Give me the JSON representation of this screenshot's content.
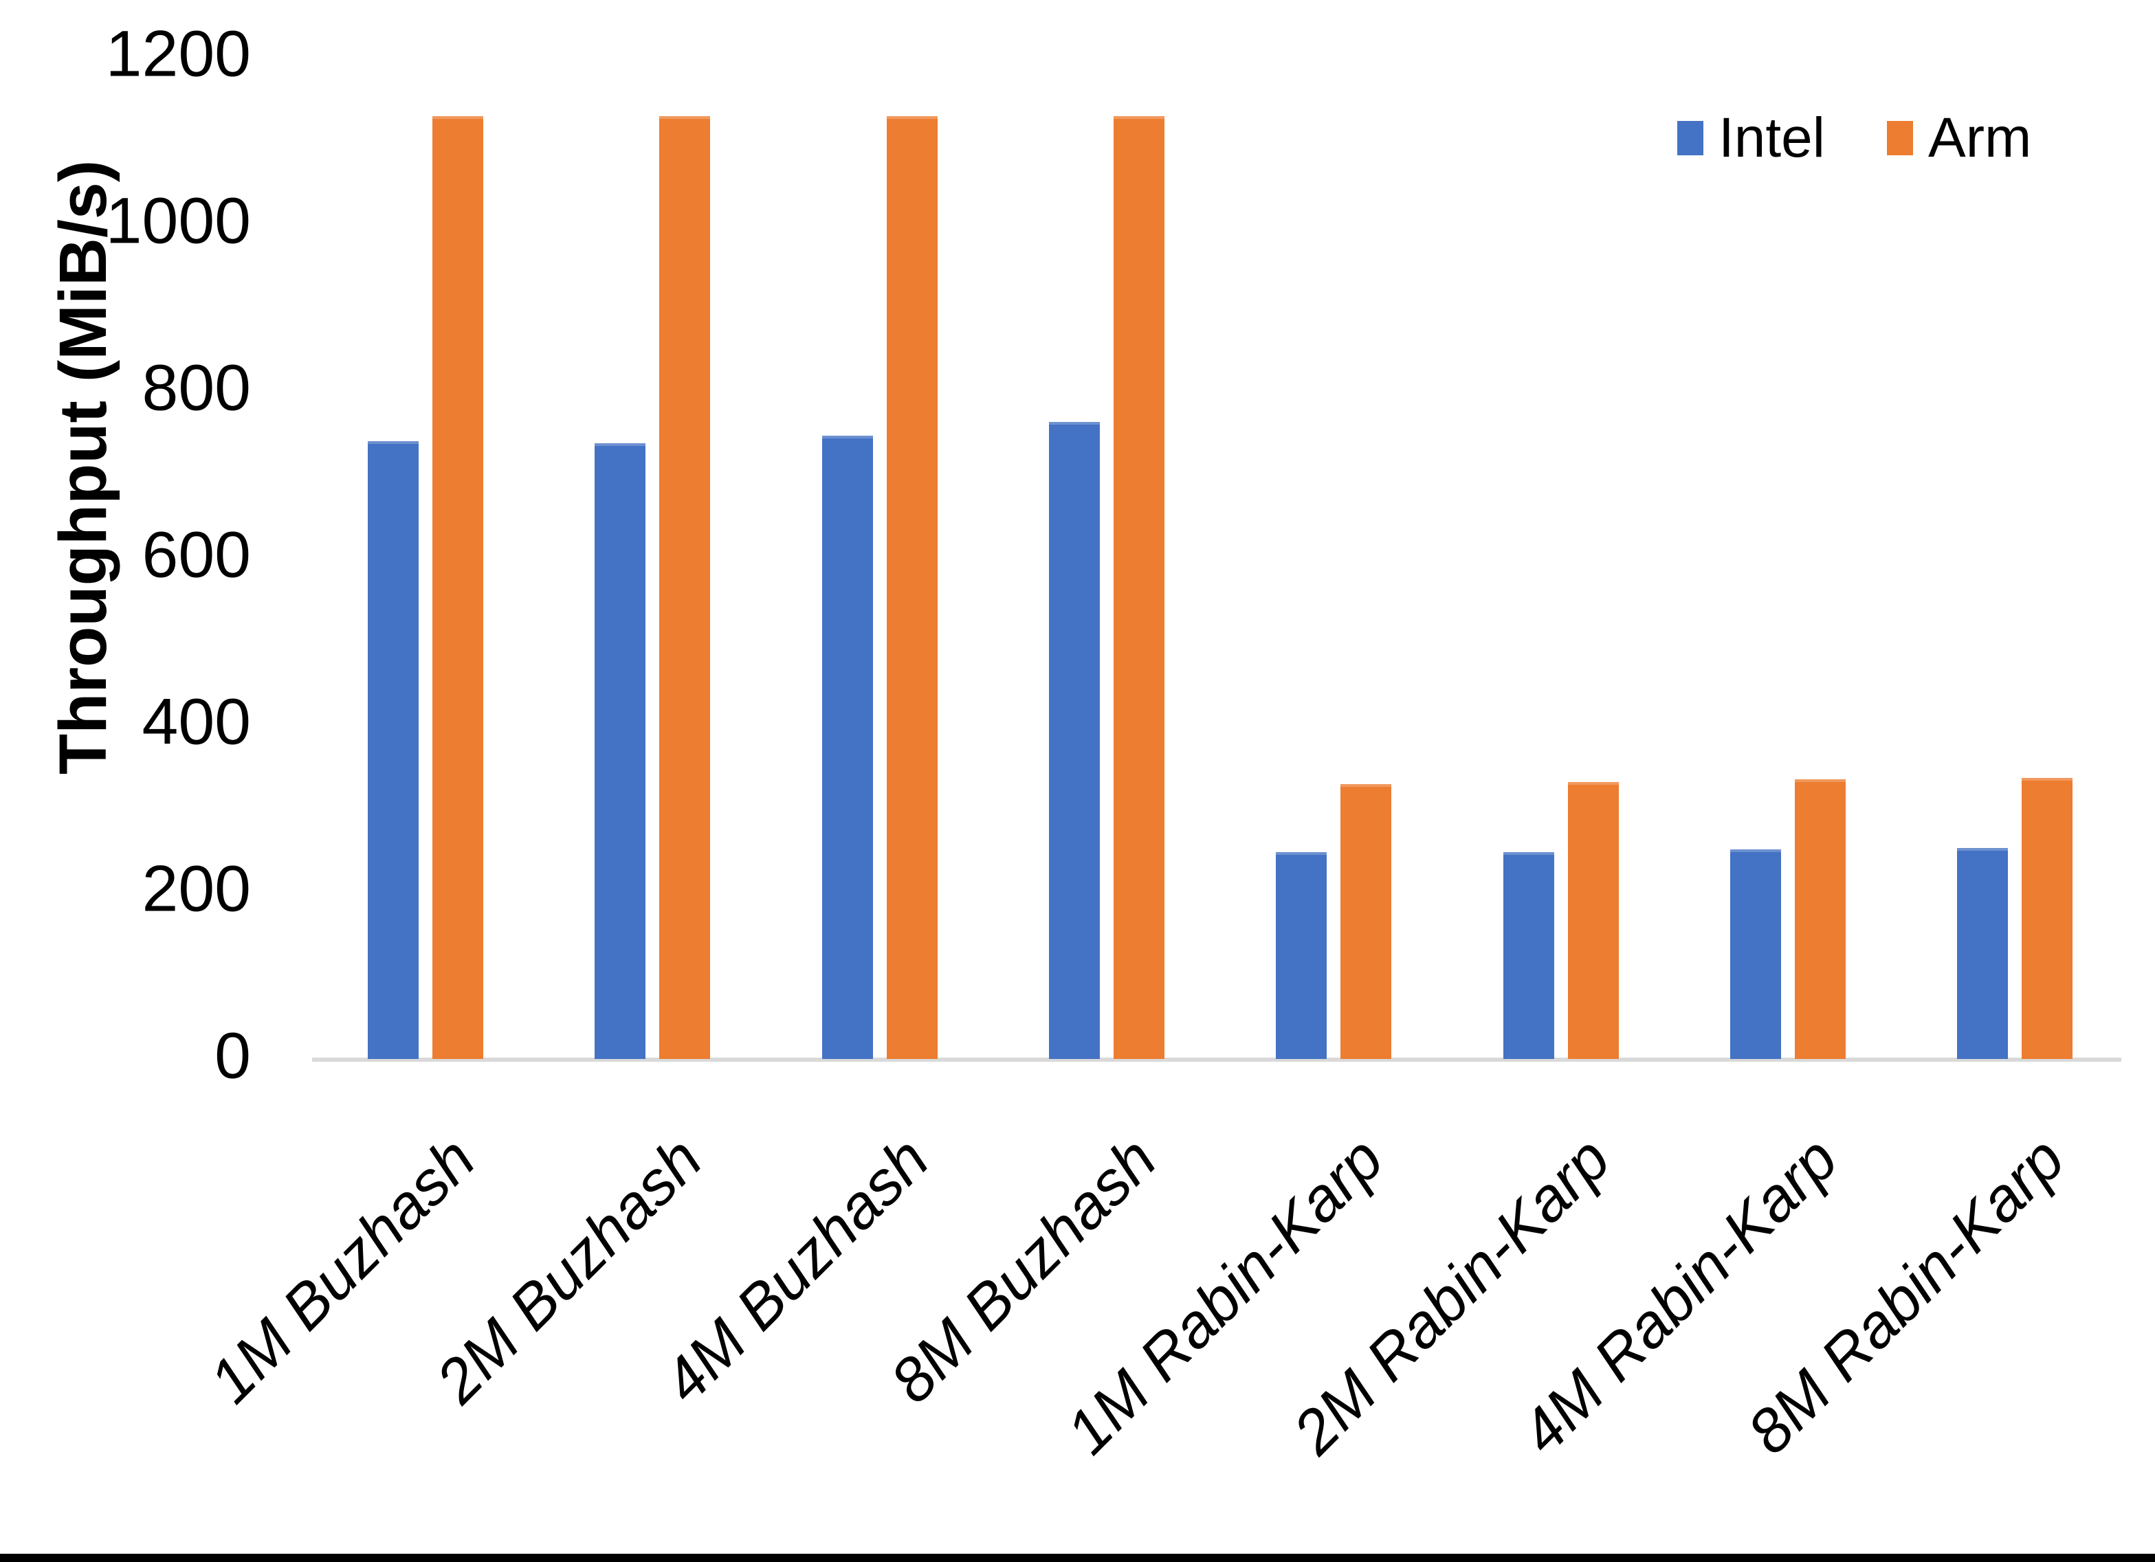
{
  "chart_data": {
    "type": "bar",
    "title": "",
    "xlabel": "",
    "ylabel": "Throughput (MiB/s)",
    "categories": [
      "1M Buzhash",
      "2M Buzhash",
      "4M Buzhash",
      "8M Buzhash",
      "1M Rabin-Karp",
      "2M Rabin-Karp",
      "4M Rabin-Karp",
      "8M Rabin-Karp"
    ],
    "series": [
      {
        "name": "Intel",
        "color": "#4472C4",
        "values": [
          740,
          738,
          747,
          763,
          248,
          248,
          251,
          253
        ]
      },
      {
        "name": "Arm",
        "color": "#ED7D31",
        "values": [
          1130,
          1130,
          1130,
          1130,
          329,
          332,
          335,
          337
        ]
      }
    ],
    "ylim": [
      0,
      1200
    ],
    "yticks": [
      0,
      200,
      400,
      600,
      800,
      1000,
      1200
    ],
    "grid": false,
    "legend_position": "top-right",
    "axis_line_color": "#D9D9D9",
    "background_color": "#FFFFFF",
    "text_color": "#000000"
  }
}
